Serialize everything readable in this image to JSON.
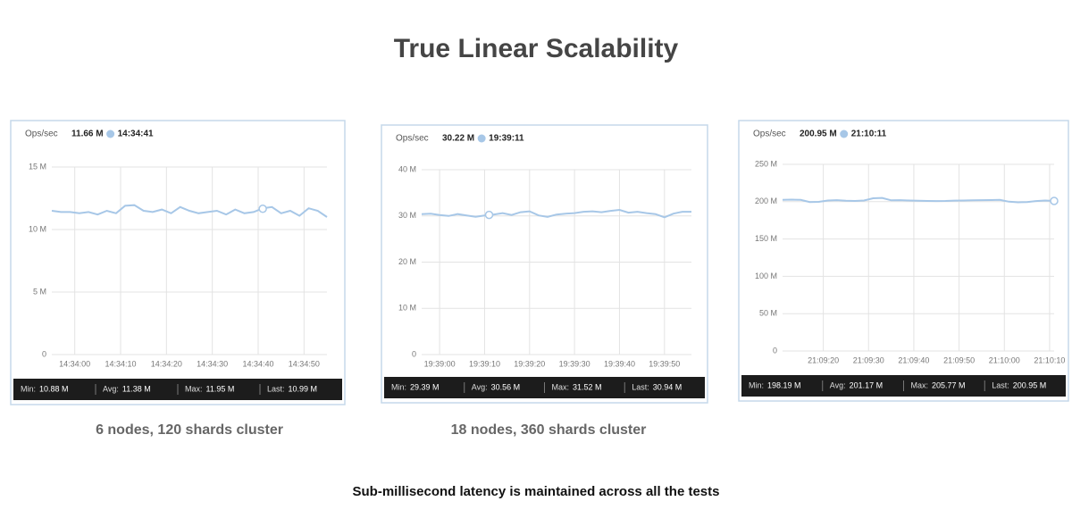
{
  "title": "True Linear Scalability",
  "captions": [
    "6 nodes, 120 shards cluster",
    "18 nodes, 360 shards cluster"
  ],
  "footnote": "Sub-millisecond latency is maintained across all the tests",
  "chart_data": [
    {
      "type": "line",
      "y_label": "Ops/sec",
      "current": {
        "value": 11.66,
        "label": "11.66 M",
        "time": "14:34:41"
      },
      "x": [
        "14:33:55",
        "14:33:57",
        "14:33:59",
        "14:34:01",
        "14:34:03",
        "14:34:05",
        "14:34:07",
        "14:34:09",
        "14:34:11",
        "14:34:13",
        "14:34:15",
        "14:34:17",
        "14:34:19",
        "14:34:21",
        "14:34:23",
        "14:34:25",
        "14:34:27",
        "14:34:29",
        "14:34:31",
        "14:34:33",
        "14:34:35",
        "14:34:37",
        "14:34:39",
        "14:34:41",
        "14:34:43",
        "14:34:45",
        "14:34:47",
        "14:34:49",
        "14:34:51",
        "14:34:53",
        "14:34:55"
      ],
      "series": [
        {
          "color": "#a7c7e7",
          "values": [
            11.5,
            11.4,
            11.4,
            11.3,
            11.4,
            11.2,
            11.5,
            11.3,
            11.9,
            11.95,
            11.5,
            11.4,
            11.6,
            11.3,
            11.8,
            11.5,
            11.3,
            11.4,
            11.5,
            11.2,
            11.6,
            11.3,
            11.4,
            11.7,
            11.8,
            11.3,
            11.5,
            11.1,
            11.7,
            11.5,
            11.0
          ]
        }
      ],
      "xlim": [
        "14:33:55",
        "14:34:55"
      ],
      "xticks": [
        "14:34:00",
        "14:34:10",
        "14:34:20",
        "14:34:30",
        "14:34:40",
        "14:34:50"
      ],
      "ylim": [
        0,
        15
      ],
      "yticks": [
        0,
        {
          "value": 5,
          "label": "5 M"
        },
        {
          "value": 10,
          "label": "10 M"
        },
        {
          "value": 15,
          "label": "15 M"
        }
      ],
      "grid": true,
      "stats": [
        [
          "Min:",
          "10.88 M"
        ],
        [
          "Avg:",
          "11.38 M"
        ],
        [
          "Max:",
          "11.95 M"
        ],
        [
          "Last:",
          "10.99 M"
        ]
      ]
    },
    {
      "type": "line",
      "y_label": "Ops/sec",
      "current": {
        "value": 30.22,
        "label": "30.22 M",
        "time": "19:39:11"
      },
      "x": [
        "19:38:56",
        "19:38:58",
        "19:39:00",
        "19:39:02",
        "19:39:04",
        "19:39:06",
        "19:39:08",
        "19:39:10",
        "19:39:12",
        "19:39:14",
        "19:39:16",
        "19:39:18",
        "19:39:20",
        "19:39:22",
        "19:39:24",
        "19:39:26",
        "19:39:28",
        "19:39:30",
        "19:39:32",
        "19:39:34",
        "19:39:36",
        "19:39:38",
        "19:39:40",
        "19:39:42",
        "19:39:44",
        "19:39:46",
        "19:39:48",
        "19:39:50",
        "19:39:52",
        "19:39:54",
        "19:39:56"
      ],
      "series": [
        {
          "color": "#a7c7e7",
          "values": [
            30.4,
            30.5,
            30.2,
            30.0,
            30.4,
            30.1,
            29.8,
            30.1,
            30.3,
            30.6,
            30.2,
            30.8,
            31.0,
            30.1,
            29.8,
            30.3,
            30.5,
            30.6,
            30.9,
            31.0,
            30.8,
            31.1,
            31.3,
            30.7,
            30.9,
            30.6,
            30.4,
            29.7,
            30.5,
            30.9,
            30.9
          ]
        }
      ],
      "xlim": [
        "19:38:56",
        "19:39:56"
      ],
      "xticks": [
        "19:39:00",
        "19:39:10",
        "19:39:20",
        "19:39:30",
        "19:39:40",
        "19:39:50"
      ],
      "ylim": [
        0,
        40
      ],
      "yticks": [
        0,
        {
          "value": 10,
          "label": "10 M"
        },
        {
          "value": 20,
          "label": "20 M"
        },
        {
          "value": 30,
          "label": "30 M"
        },
        {
          "value": 40,
          "label": "40 M"
        }
      ],
      "grid": true,
      "stats": [
        [
          "Min:",
          "29.39 M"
        ],
        [
          "Avg:",
          "30.56 M"
        ],
        [
          "Max:",
          "31.52 M"
        ],
        [
          "Last:",
          "30.94 M"
        ]
      ]
    },
    {
      "type": "line",
      "y_label": "Ops/sec",
      "current": {
        "value": 200.95,
        "label": "200.95 M",
        "time": "21:10:11"
      },
      "x": [
        "21:09:11",
        "21:09:13",
        "21:09:15",
        "21:09:17",
        "21:09:19",
        "21:09:21",
        "21:09:23",
        "21:09:25",
        "21:09:27",
        "21:09:29",
        "21:09:31",
        "21:09:33",
        "21:09:35",
        "21:09:37",
        "21:09:39",
        "21:09:41",
        "21:09:43",
        "21:09:45",
        "21:09:47",
        "21:09:49",
        "21:09:51",
        "21:09:53",
        "21:09:55",
        "21:09:57",
        "21:09:59",
        "21:10:01",
        "21:10:03",
        "21:10:05",
        "21:10:07",
        "21:10:09",
        "21:10:11"
      ],
      "series": [
        {
          "color": "#a7c7e7",
          "values": [
            202.5,
            202.8,
            202.4,
            199.5,
            199.8,
            201.5,
            202.0,
            201.2,
            201.0,
            201.6,
            204.5,
            205.0,
            201.8,
            202.0,
            201.5,
            201.2,
            200.9,
            200.8,
            201.0,
            201.4,
            201.6,
            201.9,
            202.0,
            202.2,
            202.4,
            200.0,
            199.2,
            199.5,
            200.8,
            201.5,
            200.95
          ]
        }
      ],
      "xlim": [
        "21:09:11",
        "21:10:11"
      ],
      "xticks": [
        "21:09:20",
        "21:09:30",
        "21:09:40",
        "21:09:50",
        "21:10:00",
        "21:10:10"
      ],
      "ylim": [
        0,
        250
      ],
      "yticks": [
        0,
        {
          "value": 50,
          "label": "50 M"
        },
        {
          "value": 100,
          "label": "100 M"
        },
        {
          "value": 150,
          "label": "150 M"
        },
        {
          "value": 200,
          "label": "200 M"
        },
        {
          "value": 250,
          "label": "250 M"
        }
      ],
      "grid": true,
      "stats": [
        [
          "Min:",
          "198.19 M"
        ],
        [
          "Avg:",
          "201.17 M"
        ],
        [
          "Max:",
          "205.77 M"
        ],
        [
          "Last:",
          "200.95 M"
        ]
      ]
    }
  ]
}
